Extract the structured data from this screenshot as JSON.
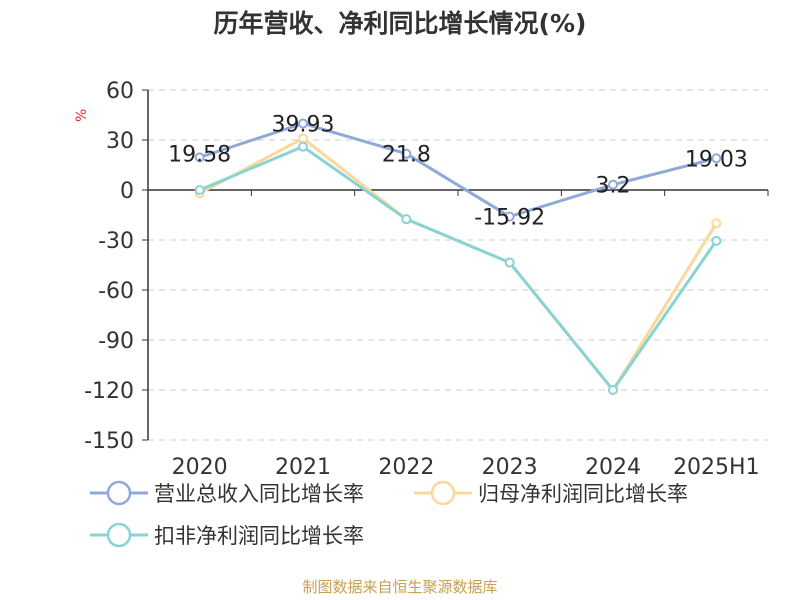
{
  "title": "历年营收、净利同比增长情况(%)",
  "unit_label": "%",
  "source": "制图数据来自恒生聚源数据库",
  "colors": {
    "revenue": "#8faad8",
    "parent_profit": "#fad89a",
    "deducted_profit": "#88d4d4",
    "grid": "#cccccc",
    "axis": "#333333",
    "text": "#333333"
  },
  "chart_data": {
    "type": "line",
    "title": "历年营收、净利同比增长情况(%)",
    "ylabel": "%",
    "xlabel": "",
    "categories": [
      "2020",
      "2021",
      "2022",
      "2023",
      "2024",
      "2025H1"
    ],
    "ylim": [
      -150,
      60
    ],
    "yticks": [
      60,
      30,
      0,
      -30,
      -60,
      -90,
      -120,
      -150
    ],
    "grid": true,
    "legend_position": "bottom",
    "series": [
      {
        "name": "营业总收入同比增长率",
        "values": [
          19.58,
          39.93,
          21.8,
          -15.92,
          3.2,
          19.03
        ],
        "labels": [
          "19.58",
          "39.93",
          "21.8",
          "-15.92",
          "3.2",
          "19.03"
        ]
      },
      {
        "name": "归母净利润同比增长率",
        "values": [
          -2,
          31,
          -17.5,
          -43.5,
          -120,
          -20
        ]
      },
      {
        "name": "扣非净利润同比增长率",
        "values": [
          0,
          26,
          -17.5,
          -43.5,
          -120,
          -30.5
        ]
      }
    ]
  }
}
